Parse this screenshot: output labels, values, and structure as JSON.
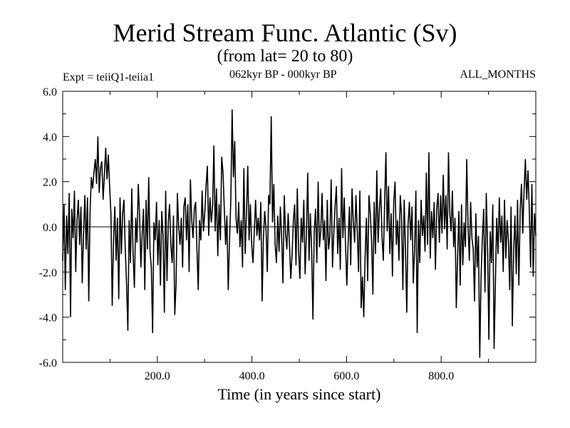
{
  "chart_data": {
    "type": "line",
    "title": "Merid Stream Func. Atlantic (Sv)",
    "subtitle": "(from lat= 20 to 80)",
    "experiment_label": "Expt = teiiQ1-teiia1",
    "period_label": "062kyr BP - 000kyr BP",
    "months_label": "ALL_MONTHS",
    "xlabel": "Time (in years since start)",
    "ylabel": "",
    "xlim": [
      0,
      1000
    ],
    "ylim": [
      -6.0,
      6.0
    ],
    "x_ticks": [
      200,
      400,
      600,
      800
    ],
    "x_tick_labels": [
      "200.0",
      "400.0",
      "600.0",
      "800.0"
    ],
    "y_ticks": [
      -6,
      -4,
      -2,
      0,
      2,
      4,
      6
    ],
    "y_tick_labels": [
      "-6.0",
      "-4.0",
      "-2.0",
      "0.0",
      "2.0",
      "4.0",
      "6.0"
    ],
    "zero_line": true,
    "grid": false,
    "x_step": 5,
    "series": [
      {
        "values": [
          -1.5,
          1.0,
          -2.8,
          0.5,
          -1.2,
          1.5,
          -4.0,
          0.8,
          -0.5,
          1.6,
          -2.0,
          0.3,
          1.2,
          -0.8,
          0.9,
          -2.5,
          -0.3,
          1.4,
          -1.0,
          1.3,
          -3.3,
          0.7,
          2.2,
          1.7,
          2.4,
          3.0,
          1.9,
          4.0,
          1.5,
          2.6,
          2.9,
          1.2,
          2.3,
          3.5,
          2.1,
          3.2,
          1.8,
          0.6,
          -3.5,
          -0.6,
          0.9,
          -1.5,
          0.4,
          -3.2,
          1.3,
          -1.2,
          0.6,
          1.2,
          -1.0,
          -2.5,
          -4.6,
          0.3,
          -1.6,
          1.7,
          -1.2,
          -2.7,
          0.4,
          -0.7,
          1.9,
          0.5,
          -1.8,
          -0.3,
          0.8,
          -2.8,
          1.2,
          -1.0,
          2.2,
          -1.1,
          -1.8,
          -4.7,
          0.2,
          -0.6,
          1.1,
          -1.7,
          0.3,
          -2.6,
          0.7,
          -0.4,
          -3.8,
          1.6,
          -2.4,
          0.2,
          1.0,
          -0.8,
          -1.6,
          0.5,
          -3.9,
          -2.5,
          1.5,
          0.0,
          -0.8,
          0.4,
          -1.8,
          0.9,
          1.3,
          -0.6,
          1.0,
          -2.0,
          2.1,
          0.3,
          -0.5,
          0.8,
          1.1,
          -1.0,
          -2.8,
          0.3,
          -0.6,
          1.6,
          -0.2,
          0.6,
          1.8,
          2.7,
          -0.4,
          1.3,
          0.2,
          0.9,
          3.6,
          -0.2,
          1.7,
          -1.3,
          1.0,
          -0.6,
          3.1,
          2.4,
          0.8,
          -0.8,
          0.5,
          -2.8,
          -0.6,
          1.2,
          5.2,
          2.2,
          3.8,
          0.4,
          -0.3,
          1.1,
          -0.9,
          0.3,
          -1.8,
          2.6,
          -1.2,
          0.6,
          2.7,
          -0.6,
          1.0,
          -0.8,
          -1.6,
          -0.2,
          1.2,
          -0.4,
          0.4,
          -0.6,
          1.1,
          -3.3,
          -0.5,
          0.7,
          -0.1,
          -2.0,
          1.4,
          1.0,
          4.9,
          0.2,
          1.9,
          -0.8,
          -1.6,
          0.5,
          -1.1,
          0.9,
          -0.5,
          -2.5,
          1.4,
          -0.3,
          -1.0,
          0.6,
          -0.8,
          -2.3,
          -1.2,
          0.3,
          1.0,
          -1.7,
          1.7,
          -1.1,
          -2.3,
          0.4,
          -0.7,
          1.2,
          -2.1,
          -0.3,
          2.4,
          -1.5,
          0.6,
          -1.0,
          -4.1,
          -0.2,
          0.8,
          -1.6,
          2.0,
          -0.9,
          -0.2,
          1.5,
          -0.6,
          0.3,
          -2.4,
          1.2,
          -1.0,
          -0.4,
          2.1,
          -1.8,
          -0.3,
          0.9,
          1.8,
          -1.2,
          0.4,
          -1.9,
          2.6,
          -0.5,
          1.3,
          -0.8,
          -2.6,
          -0.7,
          0.9,
          -1.7,
          1.7,
          0.2,
          -0.7,
          1.4,
          -0.2,
          -2.0,
          1.6,
          -3.6,
          -2.2,
          -4.0,
          -1.4,
          0.4,
          -2.4,
          1.4,
          0.6,
          -0.6,
          -3.0,
          1.1,
          -1.2,
          2.5,
          -0.7,
          0.8,
          1.7,
          -0.4,
          -1.5,
          1.0,
          3.3,
          -0.2,
          1.8,
          -1.2,
          0.6,
          -2.2,
          1.1,
          2.0,
          -0.8,
          0.3,
          -1.5,
          1.4,
          0.5,
          -2.8,
          1.2,
          -1.0,
          -3.8,
          0.1,
          1.1,
          -0.6,
          0.9,
          -2.5,
          -1.0,
          1.6,
          -4.7,
          0.3,
          -1.6,
          1.2,
          -0.4,
          0.5,
          -1.1,
          2.4,
          -0.8,
          3.3,
          -1.4,
          0.7,
          -0.5,
          1.1,
          -1.9,
          0.8,
          1.5,
          -0.7,
          1.4,
          -0.3,
          2.3,
          -0.1,
          1.4,
          -1.0,
          3.3,
          0.6,
          -0.2,
          1.6,
          -0.9,
          0.4,
          -3.6,
          -1.3,
          0.7,
          -2.6,
          1.0,
          -1.7,
          0.2,
          -0.9,
          3.0,
          0.1,
          -1.5,
          1.1,
          -0.5,
          -1.0,
          -3.3,
          0.6,
          -1.8,
          -0.4,
          -5.8,
          -2.2,
          -0.5,
          0.8,
          -2.9,
          1.5,
          -0.9,
          -5.0,
          -0.2,
          -1.6,
          1.0,
          -5.4,
          -2.5,
          0.4,
          -1.2,
          1.3,
          -0.7,
          0.5,
          -2.0,
          1.2,
          -1.4,
          0.3,
          -0.6,
          -2.8,
          0.9,
          -4.4,
          -1.1,
          0.5,
          -2.1,
          1.2,
          -2.6,
          0.7,
          1.9,
          -0.3,
          1.6,
          3.0,
          1.2,
          2.5,
          0.8,
          -1.8,
          1.9,
          -2.2,
          0.6,
          -0.4
        ]
      }
    ]
  }
}
